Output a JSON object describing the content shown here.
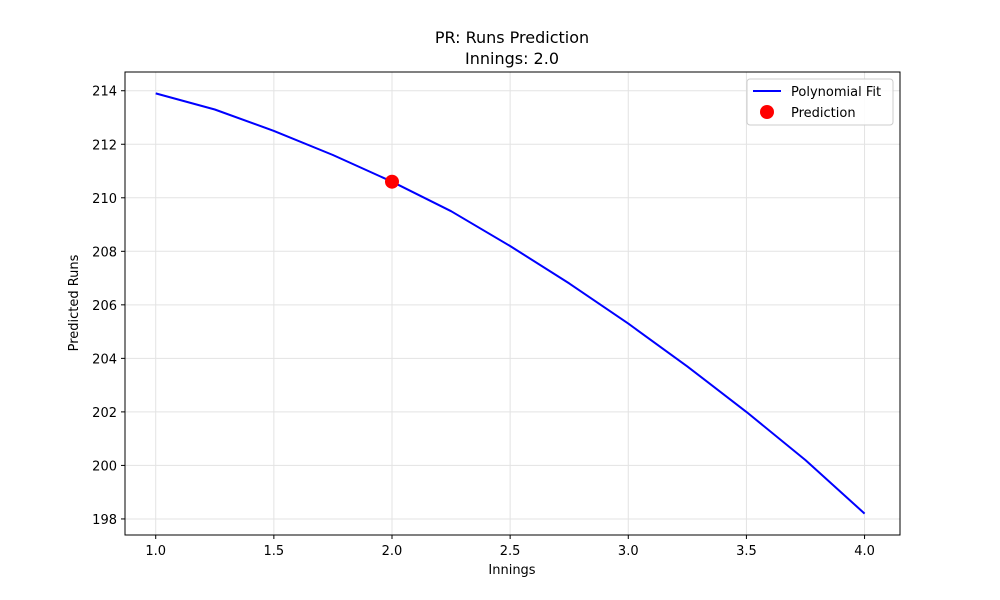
{
  "chart_data": {
    "type": "line",
    "title": "PR: Runs Prediction",
    "subtitle": "Innings: 2.0",
    "xlabel": "Innings",
    "ylabel": "Predicted Runs",
    "xlim": [
      0.87,
      4.15
    ],
    "ylim": [
      197.4,
      214.7
    ],
    "x_ticks": [
      1.0,
      1.5,
      2.0,
      2.5,
      3.0,
      3.5,
      4.0
    ],
    "x_tick_labels": [
      "1.0",
      "1.5",
      "2.0",
      "2.5",
      "3.0",
      "3.5",
      "4.0"
    ],
    "y_ticks": [
      198,
      200,
      202,
      204,
      206,
      208,
      210,
      212,
      214
    ],
    "y_tick_labels": [
      "198",
      "200",
      "202",
      "204",
      "206",
      "208",
      "210",
      "212",
      "214"
    ],
    "grid": true,
    "legend_position": "top-right",
    "series": [
      {
        "name": "Polynomial Fit",
        "kind": "line",
        "color": "#0000ff",
        "x": [
          1.0,
          1.25,
          1.5,
          1.75,
          2.0,
          2.25,
          2.5,
          2.75,
          3.0,
          3.25,
          3.5,
          3.75,
          4.0
        ],
        "y": [
          213.9,
          213.3,
          212.5,
          211.6,
          210.6,
          209.5,
          208.2,
          206.8,
          205.3,
          203.7,
          202.0,
          200.2,
          198.2
        ]
      },
      {
        "name": "Prediction",
        "kind": "scatter",
        "color": "#ff0000",
        "x": [
          2.0
        ],
        "y": [
          210.6
        ]
      }
    ]
  }
}
